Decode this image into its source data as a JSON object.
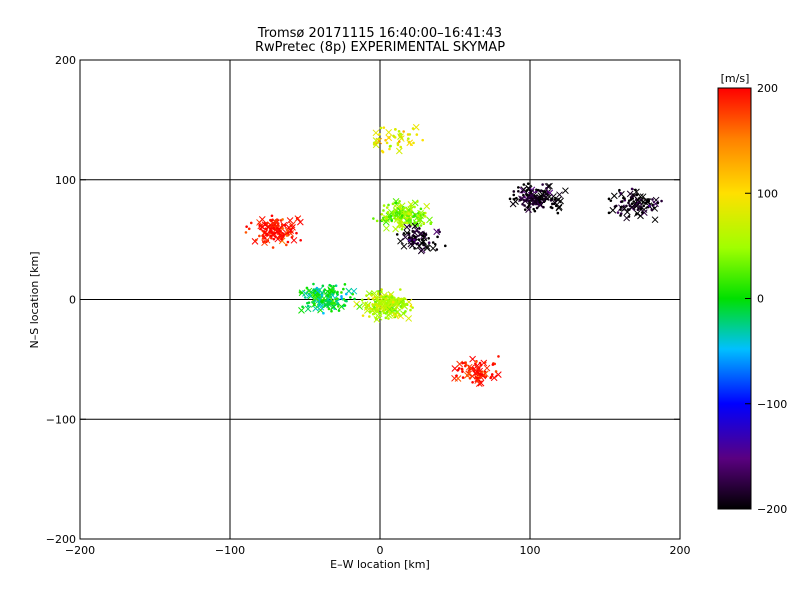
{
  "chart_data": {
    "type": "scatter",
    "title": "Tromsø 20171115  16:40:00–16:41:43",
    "subtitle": "RwPretec (8p) EXPERIMENTAL SKYMAP",
    "xlabel": "E–W location [km]",
    "ylabel": "N–S location [km]",
    "xlim": [
      -200,
      200
    ],
    "ylim": [
      -200,
      200
    ],
    "x_ticks": [
      "−200",
      "−100",
      "0",
      "100",
      "200"
    ],
    "y_ticks": [
      "−200",
      "−100",
      "0",
      "100",
      "200"
    ],
    "grid": true,
    "colorbar": {
      "label": "[m/s]",
      "range": [
        -200,
        200
      ],
      "ticks": [
        "200",
        "100",
        "0",
        "−100",
        "−200"
      ],
      "colormap": "rainbow (black → purple → blue → cyan → green → yellow → orange → red)"
    },
    "markers": [
      "point",
      "cross"
    ],
    "clusters": [
      {
        "x": -70,
        "y": 58,
        "velocity": 195,
        "count": 130
      },
      {
        "x": 15,
        "y": 70,
        "velocity": 40,
        "count": 160
      },
      {
        "x": 25,
        "y": 50,
        "velocity": -190,
        "count": 70
      },
      {
        "x": 105,
        "y": 85,
        "velocity": -200,
        "count": 140
      },
      {
        "x": 170,
        "y": 80,
        "velocity": -200,
        "count": 90
      },
      {
        "x": -35,
        "y": 2,
        "velocity": -10,
        "count": 150
      },
      {
        "x": 5,
        "y": -5,
        "velocity": 60,
        "count": 200
      },
      {
        "x": 65,
        "y": -60,
        "velocity": 195,
        "count": 80
      },
      {
        "x": 10,
        "y": 135,
        "velocity": 90,
        "count": 50
      }
    ]
  }
}
